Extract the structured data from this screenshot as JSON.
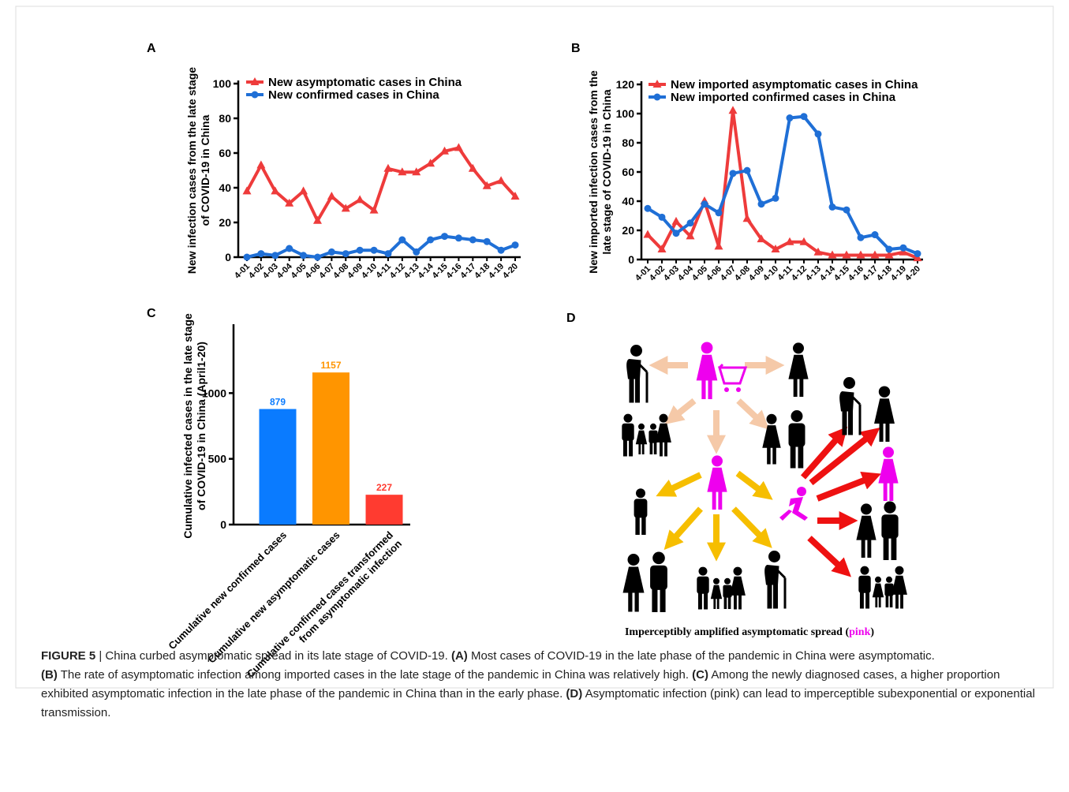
{
  "chart_data": [
    {
      "type": "line",
      "panel": "A",
      "ylabel": [
        "New infection cases from the late stage",
        "of COVID-19 in China"
      ],
      "categories": [
        "4-01",
        "4-02",
        "4-03",
        "4-04",
        "4-05",
        "4-06",
        "4-07",
        "4-08",
        "4-09",
        "4-10",
        "4-11",
        "4-12",
        "4-13",
        "4-14",
        "4-15",
        "4-16",
        "4-17",
        "4-18",
        "4-19",
        "4-20"
      ],
      "series": [
        {
          "name": "New asymptomatic cases in China",
          "color": "#ee3b3b",
          "marker": "triangle",
          "values": [
            38,
            53,
            38,
            31,
            38,
            21,
            35,
            28,
            33,
            27,
            51,
            49,
            49,
            54,
            61,
            63,
            51,
            41,
            44,
            35
          ]
        },
        {
          "name": "New confirmed cases in China",
          "color": "#1f6fd6",
          "marker": "circle",
          "values": [
            0,
            2,
            1,
            5,
            1,
            0,
            3,
            2,
            4,
            4,
            2,
            10,
            3,
            10,
            12,
            11,
            10,
            9,
            4,
            7
          ]
        }
      ],
      "ylim": [
        0,
        100
      ],
      "yticks": [
        0,
        20,
        40,
        60,
        80,
        100
      ]
    },
    {
      "type": "line",
      "panel": "B",
      "ylabel": [
        "New imported infection cases from the",
        "late stage of COVID-19 in China"
      ],
      "categories": [
        "4-01",
        "4-02",
        "4-03",
        "4-04",
        "4-05",
        "4-06",
        "4-07",
        "4-08",
        "4-09",
        "4-10",
        "4-11",
        "4-12",
        "4-13",
        "4-14",
        "4-15",
        "4-16",
        "4-17",
        "4-18",
        "4-19",
        "4-20"
      ],
      "series": [
        {
          "name": "New imported asymptomatic  cases in China",
          "color": "#ee3b3b",
          "marker": "triangle",
          "values": [
            17,
            7,
            26,
            16,
            40,
            9,
            102,
            28,
            14,
            7,
            12,
            12,
            5,
            3,
            3,
            3,
            3,
            3,
            5,
            1
          ]
        },
        {
          "name": "New  imported  confirmed cases in China",
          "color": "#1f6fd6",
          "marker": "circle",
          "values": [
            35,
            29,
            18,
            25,
            38,
            32,
            59,
            61,
            38,
            42,
            97,
            98,
            86,
            36,
            34,
            15,
            17,
            7,
            8,
            4
          ]
        }
      ],
      "ylim": [
        0,
        120
      ],
      "yticks": [
        0,
        20,
        40,
        60,
        80,
        100,
        120
      ]
    },
    {
      "type": "bar",
      "panel": "C",
      "ylabel": [
        "Cumulative infected cases in the late stage",
        "of COVID-19 in China (April1-20)"
      ],
      "categories": [
        "Cumulative new confirmed cases",
        "Cumulative new  asymptomatic  cases",
        [
          "Cumulative confirmed cases transformed",
          "from  asymptomatic  infection"
        ]
      ],
      "values": [
        879,
        1157,
        227
      ],
      "colors": [
        "#0a7bff",
        "#ff9500",
        "#ff3b30"
      ],
      "ylim": [
        0,
        1500
      ],
      "yticks": [
        0,
        500,
        1000
      ]
    }
  ],
  "diagram": {
    "panel": "D",
    "caption": [
      "Imperceptibly amplified asymptomatic spread (",
      "pink",
      ")"
    ]
  },
  "caption": {
    "label": "FIGURE 5",
    "text": "| China curbed asymptomatic spread in its late stage of COVID-19.",
    "items": [
      {
        "label": "(A)",
        "text": "Most cases of COVID-19 in the late phase of the pandemic in China were asymptomatic."
      },
      {
        "label": "(B)",
        "text": "The rate of asymptomatic infection among imported cases in the late stage of the pandemic in China was relatively high."
      },
      {
        "label": "(C)",
        "text": "Among the newly diagnosed cases, a higher proportion exhibited asymptomatic infection in the late phase of the pandemic in China than in the early phase."
      },
      {
        "label": "(D)",
        "text": "Asymptomatic infection (pink) can lead to imperceptible subexponential or exponential transmission."
      }
    ]
  }
}
